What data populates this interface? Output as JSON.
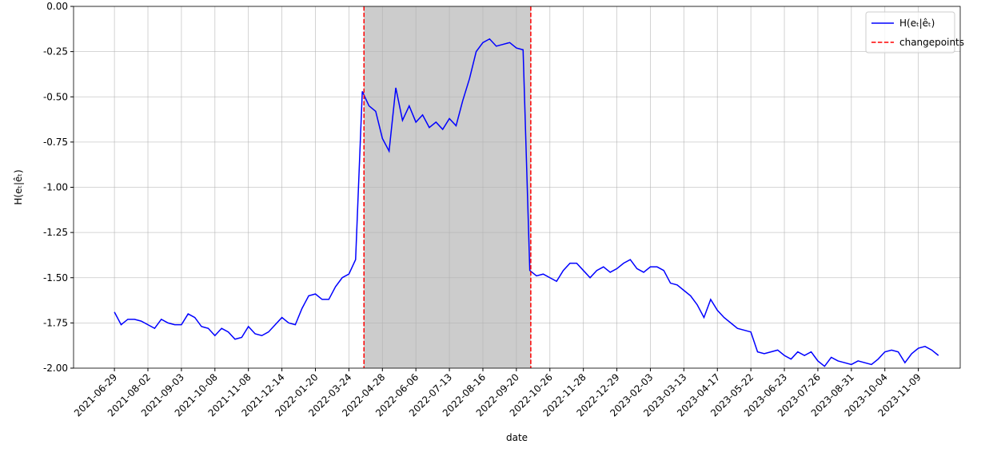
{
  "chart_data": {
    "type": "line",
    "xlabel": "date",
    "ylabel": "H(eₜ|êₜ)",
    "x": [
      0,
      2,
      4,
      6,
      8,
      10,
      12,
      14,
      16,
      18,
      20,
      22,
      24,
      26,
      28,
      30,
      32,
      34,
      36,
      38,
      40,
      42,
      44,
      46,
      48,
      50,
      52,
      54,
      56,
      58,
      60,
      62,
      64,
      66,
      68,
      70,
      72,
      74,
      76,
      78,
      80,
      82,
      84,
      86,
      88,
      90,
      92,
      94,
      96,
      98,
      100,
      102,
      104,
      106,
      108,
      110,
      112,
      114,
      116,
      118,
      120,
      122,
      124,
      126,
      128,
      130,
      132,
      134,
      136,
      138,
      140,
      142,
      144,
      146,
      148,
      150,
      152,
      154,
      156,
      158,
      160,
      162,
      164,
      166,
      168,
      170,
      172,
      174,
      176,
      178,
      180,
      182,
      184,
      186,
      188,
      190,
      192,
      194,
      196,
      198,
      200,
      202,
      204,
      206,
      208,
      210,
      212,
      214,
      216,
      218,
      220,
      222,
      224,
      226,
      228,
      230,
      232,
      234,
      236,
      238,
      240,
      242,
      244,
      246
    ],
    "series": [
      {
        "name": "H(eₜ|êₜ)",
        "color": "#0000ff",
        "values": [
          -1.69,
          -1.76,
          -1.73,
          -1.73,
          -1.74,
          -1.76,
          -1.78,
          -1.73,
          -1.75,
          -1.76,
          -1.76,
          -1.7,
          -1.72,
          -1.77,
          -1.78,
          -1.82,
          -1.78,
          -1.8,
          -1.84,
          -1.83,
          -1.77,
          -1.81,
          -1.82,
          -1.8,
          -1.76,
          -1.72,
          -1.75,
          -1.76,
          -1.67,
          -1.6,
          -1.59,
          -1.62,
          -1.62,
          -1.55,
          -1.5,
          -1.48,
          -1.4,
          -0.47,
          -0.55,
          -0.58,
          -0.73,
          -0.8,
          -0.45,
          -0.63,
          -0.55,
          -0.64,
          -0.6,
          -0.67,
          -0.64,
          -0.68,
          -0.62,
          -0.66,
          -0.52,
          -0.4,
          -0.25,
          -0.2,
          -0.18,
          -0.22,
          -0.21,
          -0.2,
          -0.23,
          -0.24,
          -1.46,
          -1.49,
          -1.48,
          -1.5,
          -1.52,
          -1.46,
          -1.42,
          -1.42,
          -1.46,
          -1.5,
          -1.46,
          -1.44,
          -1.47,
          -1.45,
          -1.42,
          -1.4,
          -1.45,
          -1.47,
          -1.44,
          -1.44,
          -1.46,
          -1.53,
          -1.54,
          -1.57,
          -1.6,
          -1.65,
          -1.72,
          -1.62,
          -1.68,
          -1.72,
          -1.75,
          -1.78,
          -1.79,
          -1.8,
          -1.91,
          -1.92,
          -1.91,
          -1.9,
          -1.93,
          -1.95,
          -1.91,
          -1.93,
          -1.91,
          -1.96,
          -1.99,
          -1.94,
          -1.96,
          -1.97,
          -1.98,
          -1.96,
          -1.97,
          -1.98,
          -1.95,
          -1.91,
          -1.9,
          -1.91,
          -1.97,
          -1.92,
          -1.89,
          -1.88,
          -1.9,
          -1.93
        ]
      }
    ],
    "changepoints": {
      "name": "changepoints",
      "color": "#ff0000",
      "x": [
        74.5,
        124.3
      ]
    },
    "span_color": "#cccccc",
    "xlim": [
      -12.2,
      252.5
    ],
    "ylim": [
      -2.0,
      0.0
    ],
    "xticks": [
      {
        "value": 0,
        "label": "2021-06-29"
      },
      {
        "value": 10,
        "label": "2021-08-02"
      },
      {
        "value": 20,
        "label": "2021-09-03"
      },
      {
        "value": 30,
        "label": "2021-10-08"
      },
      {
        "value": 40,
        "label": "2021-11-08"
      },
      {
        "value": 50,
        "label": "2021-12-14"
      },
      {
        "value": 60,
        "label": "2022-01-20"
      },
      {
        "value": 70,
        "label": "2022-03-24"
      },
      {
        "value": 80,
        "label": "2022-04-28"
      },
      {
        "value": 90,
        "label": "2022-06-06"
      },
      {
        "value": 100,
        "label": "2022-07-13"
      },
      {
        "value": 110,
        "label": "2022-08-16"
      },
      {
        "value": 120,
        "label": "2022-09-20"
      },
      {
        "value": 130,
        "label": "2022-10-26"
      },
      {
        "value": 140,
        "label": "2022-11-28"
      },
      {
        "value": 150,
        "label": "2022-12-29"
      },
      {
        "value": 160,
        "label": "2023-02-03"
      },
      {
        "value": 170,
        "label": "2023-03-13"
      },
      {
        "value": 180,
        "label": "2023-04-17"
      },
      {
        "value": 190,
        "label": "2023-05-22"
      },
      {
        "value": 200,
        "label": "2023-06-23"
      },
      {
        "value": 210,
        "label": "2023-07-26"
      },
      {
        "value": 220,
        "label": "2023-08-31"
      },
      {
        "value": 230,
        "label": "2023-10-04"
      },
      {
        "value": 240,
        "label": "2023-11-09"
      }
    ],
    "yticks": [
      {
        "value": -2.0,
        "label": "-2.00"
      },
      -1.75,
      {
        "value": -1.5,
        "label": "-1.50"
      },
      -1.25,
      {
        "value": -1.0,
        "label": "-1.00"
      },
      -0.75,
      {
        "value": -0.5,
        "label": "-0.50"
      },
      -0.25,
      {
        "value": 0.0,
        "label": "0.00"
      }
    ],
    "grid": true,
    "legend": "upper right"
  }
}
